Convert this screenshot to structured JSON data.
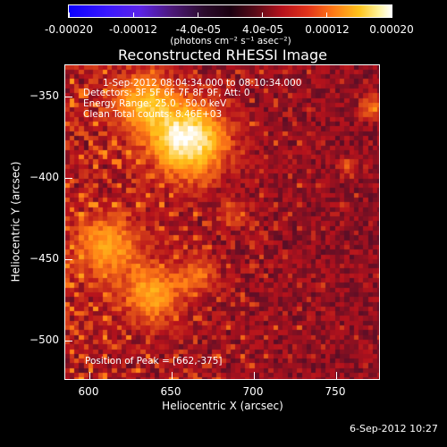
{
  "colorbar": {
    "tick_labels": [
      "-0.00020",
      "-0.00012",
      "-4.0e-05",
      "4.0e-05",
      "0.00012",
      "0.00020"
    ],
    "unit_label": "(photons cm⁻² s⁻¹ asec⁻²)",
    "range": [
      -0.0002,
      0.0002
    ]
  },
  "chart_data": {
    "type": "heatmap",
    "title": "Reconstructed RHESSI Image",
    "xlabel": "Heliocentric X (arcsec)",
    "ylabel": "Heliocentric Y (arcsec)",
    "xlim": [
      588,
      780
    ],
    "ylim": [
      -523,
      -330
    ],
    "x_ticks": [
      600,
      650,
      700,
      750
    ],
    "y_ticks": [
      -350,
      -400,
      -450,
      -500
    ],
    "x_tick_labels": [
      "600",
      "650",
      "700",
      "750"
    ],
    "y_tick_labels": [
      "−350",
      "−400",
      "−450",
      "−500"
    ],
    "annotations": {
      "time_range": "1-Sep-2012 08:04:34.000 to 08:10:34.000",
      "detectors": "Detectors: 3F 5F 6F 7F 8F 9F, Att: 0",
      "energy_range": "Energy Range: 25.0 - 50.0 keV",
      "clean": "Clean     Total counts: 8.46E+03",
      "peak": "Position of Peak = [662,-375]"
    },
    "peak": [
      662,
      -375
    ],
    "value_range": [
      -0.0002,
      0.0002
    ],
    "colormap": [
      "#0b00ff",
      "#5b23e8",
      "#2b0c2c",
      "#b5121c",
      "#ff7a16",
      "#ffc41c",
      "#ffffff"
    ]
  },
  "footer": {
    "timestamp": "6-Sep-2012 10:27"
  }
}
